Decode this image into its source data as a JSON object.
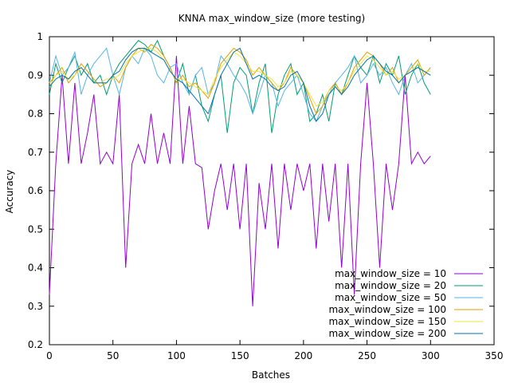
{
  "chart_data": {
    "type": "line",
    "title": "KNNA max_window_size (more testing)",
    "xlabel": "Batches",
    "ylabel": "Accuracy",
    "xlim": [
      0,
      350
    ],
    "ylim": [
      0.2,
      1
    ],
    "xticks": [
      "0",
      "50",
      "100",
      "150",
      "200",
      "250",
      "300",
      "350"
    ],
    "yticks": [
      "0.2",
      "0.3",
      "0.4",
      "0.5",
      "0.6",
      "0.7",
      "0.8",
      "0.9",
      "1"
    ],
    "grid": false,
    "legend_position": "bottom-right",
    "x": [
      0,
      5,
      10,
      15,
      20,
      25,
      30,
      35,
      40,
      45,
      50,
      55,
      60,
      65,
      70,
      75,
      80,
      85,
      90,
      95,
      100,
      105,
      110,
      115,
      120,
      125,
      130,
      135,
      140,
      145,
      150,
      155,
      160,
      165,
      170,
      175,
      180,
      185,
      190,
      195,
      200,
      205,
      210,
      215,
      220,
      225,
      230,
      235,
      240,
      245,
      250,
      255,
      260,
      265,
      270,
      275,
      280,
      285,
      290,
      295,
      300
    ],
    "series": [
      {
        "name": "max_window_size = 10",
        "color": "#9400d3",
        "values": [
          0.33,
          0.67,
          0.9,
          0.67,
          0.88,
          0.67,
          0.75,
          0.85,
          0.67,
          0.7,
          0.67,
          0.85,
          0.4,
          0.67,
          0.72,
          0.67,
          0.8,
          0.67,
          0.75,
          0.67,
          0.95,
          0.67,
          0.82,
          0.67,
          0.66,
          0.5,
          0.6,
          0.67,
          0.55,
          0.67,
          0.5,
          0.67,
          0.3,
          0.62,
          0.5,
          0.67,
          0.45,
          0.67,
          0.55,
          0.67,
          0.6,
          0.67,
          0.45,
          0.67,
          0.52,
          0.67,
          0.4,
          0.67,
          0.33,
          0.67,
          0.88,
          0.67,
          0.4,
          0.67,
          0.55,
          0.67,
          0.9,
          0.67,
          0.7,
          0.67,
          0.69
        ]
      },
      {
        "name": "max_window_size = 20",
        "color": "#009e73",
        "values": [
          0.85,
          0.93,
          0.88,
          0.92,
          0.95,
          0.9,
          0.93,
          0.88,
          0.9,
          0.85,
          0.9,
          0.93,
          0.95,
          0.97,
          0.99,
          0.98,
          0.96,
          0.99,
          0.95,
          0.92,
          0.88,
          0.93,
          0.85,
          0.9,
          0.82,
          0.78,
          0.85,
          0.9,
          0.75,
          0.88,
          0.92,
          0.9,
          0.8,
          0.88,
          0.93,
          0.75,
          0.85,
          0.9,
          0.93,
          0.85,
          0.88,
          0.78,
          0.8,
          0.85,
          0.78,
          0.88,
          0.85,
          0.9,
          0.95,
          0.92,
          0.9,
          0.95,
          0.88,
          0.93,
          0.9,
          0.95,
          0.85,
          0.9,
          0.93,
          0.88,
          0.85
        ]
      },
      {
        "name": "max_window_size = 50",
        "color": "#56b4e9",
        "values": [
          0.88,
          0.95,
          0.9,
          0.92,
          0.96,
          0.85,
          0.9,
          0.93,
          0.95,
          0.97,
          0.9,
          0.85,
          0.92,
          0.95,
          0.93,
          0.97,
          0.95,
          0.9,
          0.88,
          0.92,
          0.93,
          0.88,
          0.85,
          0.9,
          0.92,
          0.85,
          0.88,
          0.95,
          0.93,
          0.9,
          0.88,
          0.85,
          0.8,
          0.85,
          0.9,
          0.88,
          0.82,
          0.86,
          0.88,
          0.9,
          0.85,
          0.8,
          0.78,
          0.82,
          0.85,
          0.88,
          0.9,
          0.92,
          0.95,
          0.88,
          0.9,
          0.93,
          0.9,
          0.92,
          0.88,
          0.85,
          0.9,
          0.93,
          0.88,
          0.9,
          0.92
        ]
      },
      {
        "name": "max_window_size = 100",
        "color": "#e69f00",
        "values": [
          0.88,
          0.9,
          0.92,
          0.88,
          0.9,
          0.93,
          0.91,
          0.89,
          0.87,
          0.88,
          0.9,
          0.88,
          0.92,
          0.95,
          0.97,
          0.96,
          0.98,
          0.97,
          0.95,
          0.92,
          0.88,
          0.9,
          0.87,
          0.88,
          0.86,
          0.84,
          0.88,
          0.93,
          0.95,
          0.97,
          0.96,
          0.94,
          0.9,
          0.92,
          0.9,
          0.88,
          0.86,
          0.88,
          0.92,
          0.9,
          0.88,
          0.84,
          0.8,
          0.82,
          0.86,
          0.88,
          0.85,
          0.88,
          0.92,
          0.94,
          0.96,
          0.95,
          0.93,
          0.9,
          0.92,
          0.88,
          0.9,
          0.92,
          0.94,
          0.9,
          0.92
        ]
      },
      {
        "name": "max_window_size = 150",
        "color": "#f0e442",
        "values": [
          0.87,
          0.9,
          0.91,
          0.89,
          0.9,
          0.92,
          0.9,
          0.88,
          0.88,
          0.89,
          0.89,
          0.9,
          0.93,
          0.95,
          0.96,
          0.97,
          0.97,
          0.96,
          0.94,
          0.91,
          0.89,
          0.89,
          0.88,
          0.87,
          0.86,
          0.85,
          0.89,
          0.92,
          0.94,
          0.96,
          0.95,
          0.93,
          0.91,
          0.91,
          0.9,
          0.89,
          0.87,
          0.88,
          0.91,
          0.9,
          0.88,
          0.85,
          0.82,
          0.83,
          0.86,
          0.87,
          0.86,
          0.88,
          0.91,
          0.93,
          0.95,
          0.94,
          0.92,
          0.9,
          0.91,
          0.89,
          0.9,
          0.91,
          0.93,
          0.91,
          0.91
        ]
      },
      {
        "name": "max_window_size = 200",
        "color": "#0072b2",
        "values": [
          0.87,
          0.89,
          0.9,
          0.89,
          0.91,
          0.92,
          0.9,
          0.88,
          0.88,
          0.88,
          0.9,
          0.91,
          0.94,
          0.96,
          0.97,
          0.97,
          0.96,
          0.95,
          0.94,
          0.91,
          0.89,
          0.88,
          0.86,
          0.84,
          0.82,
          0.8,
          0.85,
          0.9,
          0.93,
          0.96,
          0.97,
          0.93,
          0.89,
          0.9,
          0.89,
          0.87,
          0.86,
          0.87,
          0.9,
          0.91,
          0.88,
          0.82,
          0.78,
          0.8,
          0.85,
          0.87,
          0.85,
          0.87,
          0.9,
          0.92,
          0.94,
          0.95,
          0.93,
          0.91,
          0.9,
          0.88,
          0.9,
          0.91,
          0.92,
          0.91,
          0.9
        ]
      }
    ]
  }
}
